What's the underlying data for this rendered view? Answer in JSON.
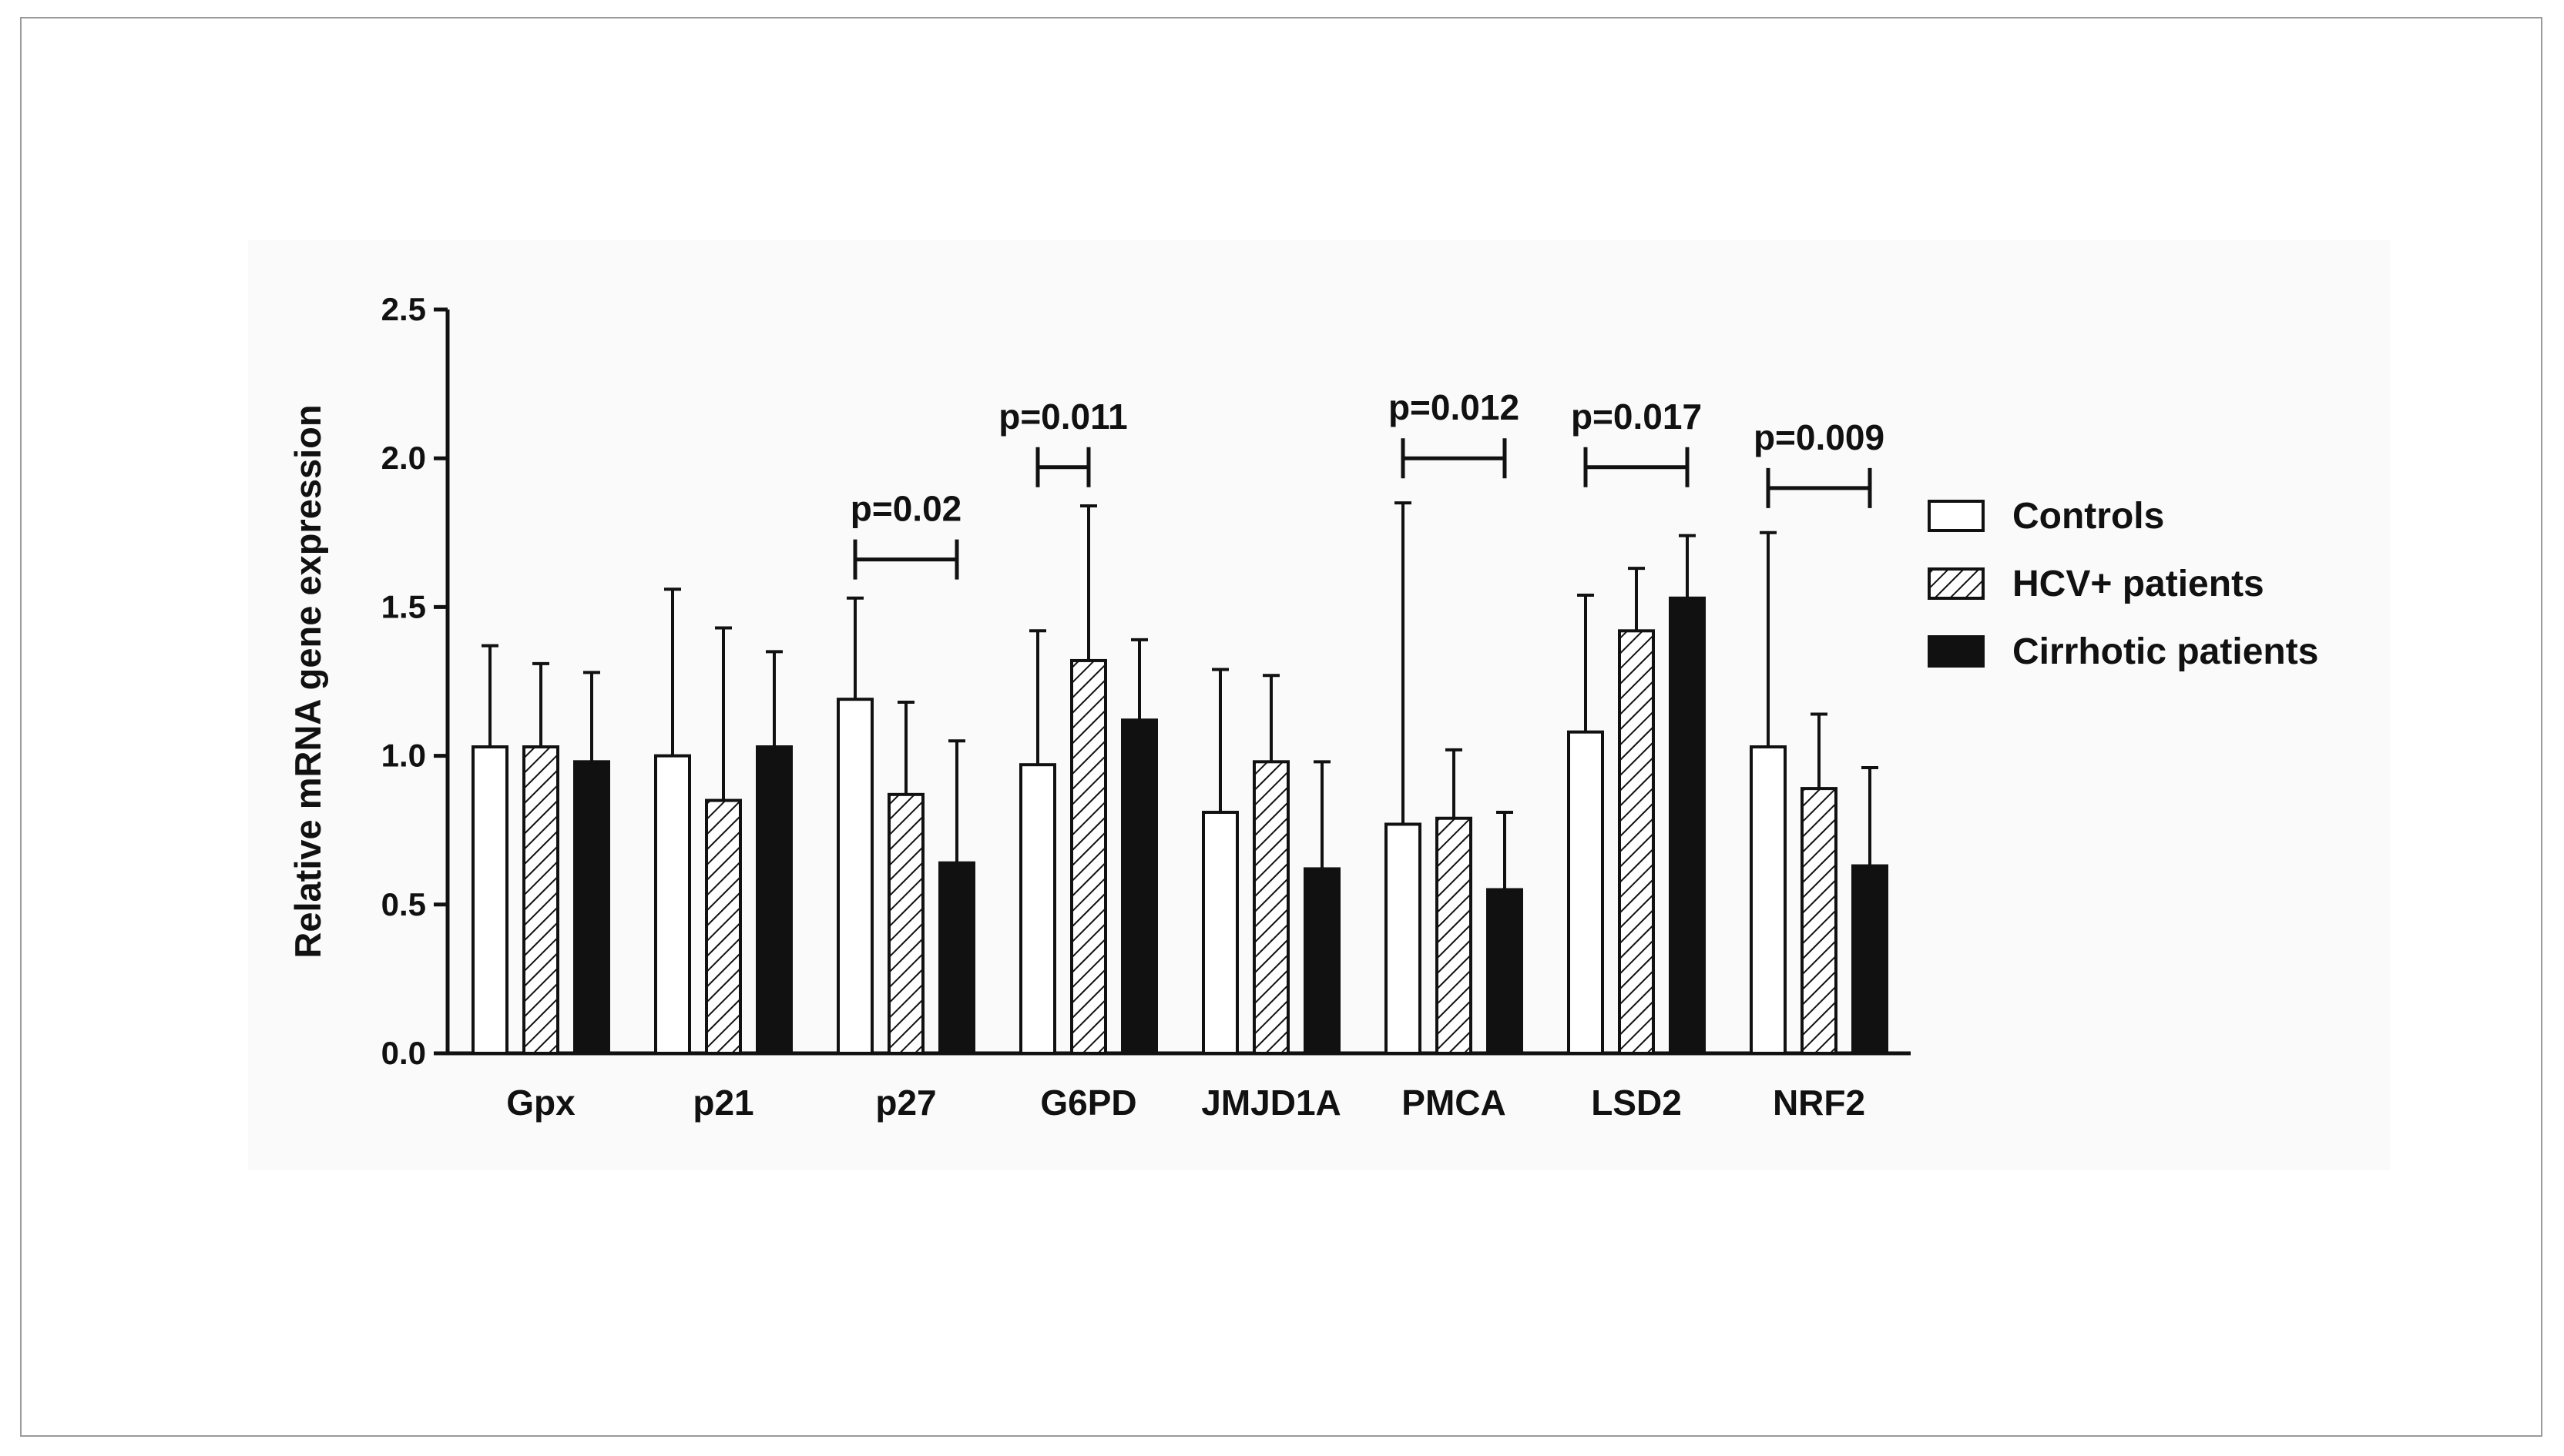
{
  "chart_data": {
    "type": "bar",
    "title": "",
    "xlabel": "",
    "ylabel": "Relative mRNA gene expression",
    "ylim": [
      0,
      2.5
    ],
    "yticks": [
      "0.0",
      "0.5",
      "1.0",
      "1.5",
      "2.0",
      "2.5"
    ],
    "categories": [
      "Gpx",
      "p21",
      "p27",
      "G6PD",
      "JMJD1A",
      "PMCA",
      "LSD2",
      "NRF2"
    ],
    "series": [
      {
        "name": "Controls",
        "pattern": "white",
        "values": [
          1.03,
          1.0,
          1.19,
          0.97,
          0.81,
          0.77,
          1.08,
          1.03
        ],
        "error_upper": [
          1.37,
          1.56,
          1.53,
          1.42,
          1.29,
          1.85,
          1.54,
          1.75
        ]
      },
      {
        "name": "HCV+ patients",
        "pattern": "hatched",
        "values": [
          1.03,
          0.85,
          0.87,
          1.32,
          0.98,
          0.79,
          1.42,
          0.89
        ],
        "error_upper": [
          1.31,
          1.43,
          1.18,
          1.84,
          1.27,
          1.02,
          1.63,
          1.14
        ]
      },
      {
        "name": "Cirrhotic patients",
        "pattern": "black",
        "values": [
          0.98,
          1.03,
          0.64,
          1.12,
          0.62,
          0.55,
          1.53,
          0.63
        ],
        "error_upper": [
          1.28,
          1.35,
          1.05,
          1.39,
          0.98,
          0.81,
          1.74,
          0.96
        ]
      }
    ],
    "annotations": [
      {
        "text": "p=0.02",
        "category": "p27",
        "from_series": 0,
        "to_series": 2,
        "y": 1.66
      },
      {
        "text": "p=0.011",
        "category": "G6PD",
        "from_series": 0,
        "to_series": 1,
        "y": 1.97
      },
      {
        "text": "p=0.012",
        "category": "PMCA",
        "from_series": 0,
        "to_series": 2,
        "y": 2.0
      },
      {
        "text": "p=0.017",
        "category": "LSD2",
        "from_series": 0,
        "to_series": 2,
        "y": 1.97
      },
      {
        "text": "p=0.009",
        "category": "NRF2",
        "from_series": 0,
        "to_series": 2,
        "y": 1.9
      }
    ],
    "legend": {
      "placement": "right",
      "entries": [
        "Controls",
        "HCV+ patients",
        "Cirrhotic patients"
      ]
    },
    "grid": false
  }
}
